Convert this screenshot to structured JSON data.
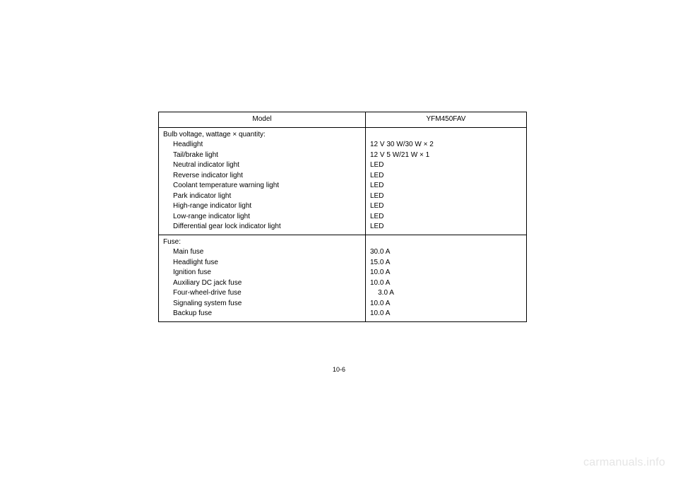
{
  "page_number": "10-6",
  "watermark": "carmanuals.info",
  "header": {
    "model_label": "Model",
    "model_value": "YFM450FAV"
  },
  "sections": [
    {
      "title": "Bulb voltage, wattage × quantity:",
      "rows": [
        {
          "label": "Headlight",
          "value": "12 V 30 W/30 W × 2"
        },
        {
          "label": "Tail/brake light",
          "value": "12 V 5 W/21 W × 1"
        },
        {
          "label": "Neutral indicator light",
          "value": "LED"
        },
        {
          "label": "Reverse indicator light",
          "value": "LED"
        },
        {
          "label": "Coolant temperature warning light",
          "value": "LED"
        },
        {
          "label": "Park indicator light",
          "value": "LED"
        },
        {
          "label": "High-range indicator light",
          "value": "LED"
        },
        {
          "label": "Low-range indicator light",
          "value": "LED"
        },
        {
          "label": "Differential gear lock indicator light",
          "value": "LED"
        }
      ]
    },
    {
      "title": "Fuse:",
      "rows": [
        {
          "label": "Main fuse",
          "value": "30.0 A"
        },
        {
          "label": "Headlight fuse",
          "value": "15.0 A"
        },
        {
          "label": "Ignition fuse",
          "value": "10.0 A"
        },
        {
          "label": "Auxiliary DC jack fuse",
          "value": "10.0 A"
        },
        {
          "label": "Four-wheel-drive fuse",
          "value": "  3.0 A"
        },
        {
          "label": "Signaling system fuse",
          "value": "10.0 A"
        },
        {
          "label": "Backup fuse",
          "value": "10.0 A"
        }
      ]
    }
  ]
}
